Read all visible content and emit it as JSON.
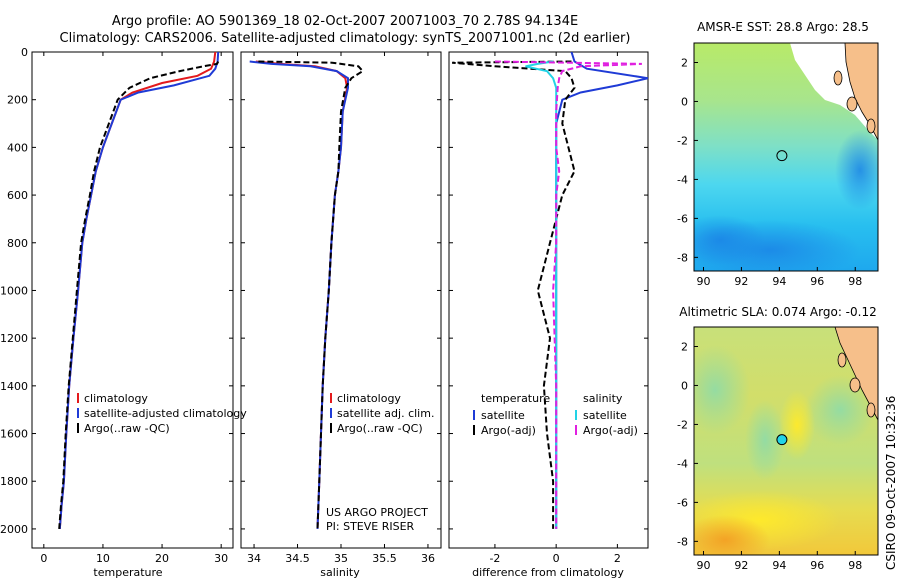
{
  "figure": {
    "title_line1": "Argo profile: AO 5901369_18 02-Oct-2007 20071003_70 2.78S 94.134E",
    "title_line2": "Climatology: CARS2006. Satellite-adjusted climatology: synTS_20071001.nc (2d earlier)",
    "credit": "CSIRO 09-Oct-2007 10:32:36"
  },
  "colors": {
    "red": "#e41a1c",
    "blue": "#1f3bd6",
    "black": "#000000",
    "cyan": "#22d3e6",
    "magenta": "#e020e0",
    "land": "#f6bf8a"
  },
  "chart_data": [
    {
      "type": "line",
      "id": "temperature",
      "xlabel": "temperature",
      "ylabel": "",
      "xlim": [
        -2,
        32
      ],
      "ylim": [
        0,
        2080
      ],
      "xticks": [
        "0",
        "10",
        "20",
        "30"
      ],
      "xtick_values": [
        0,
        10,
        20,
        30
      ],
      "yticks": [
        "0",
        "200",
        "400",
        "600",
        "800",
        "1000",
        "1200",
        "1400",
        "1600",
        "1800",
        "2000"
      ],
      "ytick_values": [
        0,
        200,
        400,
        600,
        800,
        1000,
        1200,
        1400,
        1600,
        1800,
        2000
      ],
      "legend": [
        "climatology",
        "satellite-adjusted climatology",
        "Argo(..raw -QC)"
      ],
      "series": [
        {
          "name": "climatology",
          "color": "#e41a1c",
          "dash": "",
          "x": [
            29.0,
            28.8,
            28.3,
            26.0,
            20.0,
            15.0,
            13.0,
            11.5,
            10.0,
            8.8,
            8.0,
            7.2,
            6.5,
            5.8,
            5.0,
            4.3,
            3.8,
            3.4,
            3.0,
            2.7
          ],
          "y": [
            0,
            40,
            70,
            100,
            130,
            170,
            200,
            300,
            400,
            500,
            600,
            700,
            800,
            1000,
            1200,
            1400,
            1600,
            1800,
            1900,
            2000
          ]
        },
        {
          "name": "satellite-adjusted climatology",
          "color": "#1f3bd6",
          "dash": "",
          "x": [
            29.5,
            29.4,
            29.0,
            28.0,
            22.0,
            16.0,
            13.0,
            11.5,
            10.0,
            8.8,
            8.0,
            7.2,
            6.5,
            5.8,
            5.0,
            4.3,
            3.8,
            3.4,
            3.0,
            2.7
          ],
          "y": [
            0,
            40,
            70,
            100,
            140,
            170,
            200,
            300,
            400,
            500,
            600,
            700,
            800,
            1000,
            1200,
            1400,
            1600,
            1800,
            1900,
            2000
          ]
        },
        {
          "name": "Argo(..raw -QC)",
          "color": "#000000",
          "dash": "6,3",
          "x": [
            29.5,
            29.3,
            27.0,
            23.0,
            18.0,
            14.5,
            12.5,
            11.0,
            9.5,
            8.5,
            7.8,
            7.0,
            6.3,
            5.6,
            4.9,
            4.2,
            3.7,
            3.3,
            2.9,
            2.6
          ],
          "y": [
            40,
            50,
            60,
            80,
            110,
            150,
            200,
            300,
            400,
            500,
            600,
            700,
            800,
            1000,
            1200,
            1400,
            1600,
            1800,
            1900,
            2000
          ]
        }
      ]
    },
    {
      "type": "line",
      "id": "salinity",
      "xlabel": "salinity",
      "ylabel": "",
      "xlim": [
        33.85,
        36.15
      ],
      "ylim": [
        0,
        2080
      ],
      "xticks": [
        "34",
        "34.5",
        "35",
        "35.5",
        "36"
      ],
      "xtick_values": [
        34,
        34.5,
        35,
        35.5,
        36
      ],
      "legend": [
        "climatology",
        "satellite adj. clim.",
        "Argo(..raw -QC)"
      ],
      "annotation": [
        "US ARGO PROJECT",
        "PI: STEVE RISER"
      ],
      "series": [
        {
          "name": "climatology",
          "color": "#e41a1c",
          "dash": "",
          "x": [
            34.02,
            34.3,
            34.7,
            34.95,
            35.05,
            35.07,
            35.02,
            35.0,
            34.97,
            34.93,
            34.89,
            34.86,
            34.82,
            34.79,
            34.77,
            34.75,
            34.74,
            34.73
          ],
          "y": [
            40,
            50,
            60,
            80,
            110,
            150,
            250,
            400,
            500,
            600,
            800,
            1000,
            1200,
            1400,
            1600,
            1800,
            1900,
            2000
          ]
        },
        {
          "name": "satellite adj. clim.",
          "color": "#1f3bd6",
          "dash": "",
          "x": [
            33.95,
            34.2,
            34.65,
            34.95,
            35.08,
            35.08,
            35.02,
            35.0,
            34.97,
            34.93,
            34.89,
            34.86,
            34.82,
            34.79,
            34.77,
            34.75,
            34.74,
            34.73
          ],
          "y": [
            40,
            50,
            60,
            80,
            110,
            150,
            250,
            400,
            500,
            600,
            800,
            1000,
            1200,
            1400,
            1600,
            1800,
            1900,
            2000
          ]
        },
        {
          "name": "Argo(..raw -QC)",
          "color": "#000000",
          "dash": "6,3",
          "x": [
            34.05,
            34.9,
            35.2,
            35.25,
            35.12,
            35.05,
            35.0,
            34.98,
            34.97,
            34.93,
            34.89,
            34.86,
            34.82,
            34.79,
            34.77,
            34.75,
            34.74,
            34.73
          ],
          "y": [
            40,
            45,
            60,
            80,
            110,
            150,
            250,
            400,
            500,
            600,
            800,
            1000,
            1200,
            1400,
            1600,
            1800,
            1900,
            2000
          ]
        }
      ]
    },
    {
      "type": "line",
      "id": "difference",
      "xlabel": "difference from climatology",
      "ylabel": "",
      "xlim": [
        -3.5,
        3.0
      ],
      "ylim": [
        0,
        2080
      ],
      "xticks": [
        "-2",
        "0",
        "2"
      ],
      "xtick_values": [
        -2,
        0,
        2
      ],
      "legend_title_left": "temperature",
      "legend_title_right": "salinity",
      "legend": [
        "satellite",
        "Argo(-adj)",
        "satellite",
        "Argo(-adj)"
      ],
      "series": [
        {
          "name": "temperature satellite",
          "color": "#1f3bd6",
          "dash": "",
          "x": [
            0.5,
            0.6,
            1.0,
            3.0,
            2.0,
            0.8,
            0.2,
            0.0,
            0.0,
            0.0,
            0.0,
            0.0,
            0.0,
            0.0,
            0.0,
            0.0,
            0.0,
            0.0
          ],
          "y": [
            0,
            40,
            70,
            110,
            140,
            170,
            200,
            300,
            400,
            500,
            600,
            800,
            1000,
            1200,
            1400,
            1600,
            1800,
            2000
          ]
        },
        {
          "name": "temperature Argo(-adj)",
          "color": "#000000",
          "dash": "6,3",
          "x": [
            0.5,
            -3.4,
            -2.0,
            0.3,
            0.5,
            0.6,
            0.3,
            0.2,
            0.4,
            0.6,
            0.2,
            -0.2,
            -0.6,
            -0.2,
            -0.4,
            -0.3,
            -0.1,
            -0.1
          ],
          "y": [
            40,
            45,
            60,
            80,
            110,
            150,
            200,
            300,
            400,
            500,
            600,
            800,
            1000,
            1200,
            1400,
            1600,
            1800,
            2000
          ]
        },
        {
          "name": "salinity satellite",
          "color": "#22d3e6",
          "dash": "",
          "x": [
            -0.1,
            -0.6,
            -1.0,
            -0.3,
            -0.1,
            0.0,
            0.0,
            0.0,
            0.0,
            0.0,
            0.0,
            0.0,
            0.0,
            0.0,
            0.0,
            0.0
          ],
          "y": [
            40,
            50,
            60,
            80,
            110,
            150,
            250,
            400,
            500,
            600,
            800,
            1000,
            1200,
            1400,
            1600,
            2000
          ]
        },
        {
          "name": "salinity Argo(-adj)",
          "color": "#e020e0",
          "dash": "6,3",
          "x": [
            -2.0,
            2.8,
            0.8,
            0.2,
            0.1,
            0.05,
            0.0,
            0.0,
            0.1,
            0.0,
            0.0,
            -0.1,
            -0.05,
            0.0,
            0.0,
            0.0
          ],
          "y": [
            40,
            50,
            60,
            80,
            110,
            150,
            250,
            400,
            500,
            600,
            800,
            1000,
            1200,
            1400,
            1600,
            2000
          ]
        }
      ]
    },
    {
      "type": "heatmap",
      "id": "sst_map",
      "title": "AMSR-E SST: 28.8 Argo: 28.5",
      "xlim": [
        89.5,
        99.2
      ],
      "ylim": [
        -8.7,
        3.0
      ],
      "xticks": [
        "90",
        "92",
        "94",
        "96",
        "98"
      ],
      "xtick_values": [
        90,
        92,
        94,
        96,
        98
      ],
      "yticks": [
        "2",
        "0",
        "-2",
        "-4",
        "-6",
        "-8"
      ],
      "ytick_values": [
        2,
        0,
        -2,
        -4,
        -6,
        -8
      ],
      "marker": {
        "lon": 94.134,
        "lat": -2.78
      }
    },
    {
      "type": "heatmap",
      "id": "sla_map",
      "title": "Altimetric SLA: 0.074 Argo: -0.12",
      "xlim": [
        89.5,
        99.2
      ],
      "ylim": [
        -8.7,
        3.0
      ],
      "xticks": [
        "90",
        "92",
        "94",
        "96",
        "98"
      ],
      "xtick_values": [
        90,
        92,
        94,
        96,
        98
      ],
      "yticks": [
        "2",
        "0",
        "-2",
        "-4",
        "-6",
        "-8"
      ],
      "ytick_values": [
        2,
        0,
        -2,
        -4,
        -6,
        -8
      ],
      "marker": {
        "lon": 94.134,
        "lat": -2.78
      }
    }
  ]
}
